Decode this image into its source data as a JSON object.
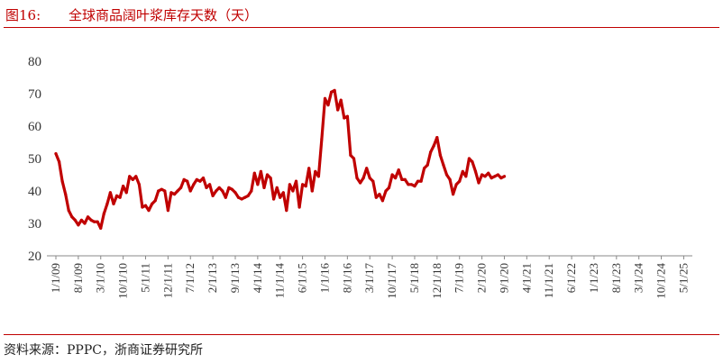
{
  "header": {
    "figure_label": "图16:",
    "title": "全球商品阔叶浆库存天数（天）"
  },
  "footer": {
    "source": "资料来源：PPPC，浙商证券研究所"
  },
  "colors": {
    "accent": "#c00000",
    "line": "#c00000"
  },
  "chart_data": {
    "type": "line",
    "title": "全球商品阔叶浆库存天数（天）",
    "xlabel": "",
    "ylabel": "",
    "ylim": [
      20,
      80
    ],
    "yticks": [
      20,
      30,
      40,
      50,
      60,
      70,
      80
    ],
    "grid": false,
    "legend": "none",
    "x_tick_labels": [
      "1/1/09",
      "8/1/09",
      "3/1/10",
      "10/1/10",
      "5/1/11",
      "12/1/11",
      "7/1/12",
      "2/1/13",
      "9/1/13",
      "4/1/14",
      "11/1/14",
      "6/1/15",
      "1/1/16",
      "8/1/16",
      "3/1/17",
      "10/1/17",
      "5/1/18",
      "12/1/18",
      "7/1/19",
      "2/1/20",
      "9/1/20",
      "4/1/21",
      "11/1/21",
      "6/1/22",
      "1/1/23",
      "8/1/23",
      "3/1/24",
      "10/1/24",
      "5/1/25"
    ],
    "x_tick_months": [
      0,
      7,
      14,
      21,
      28,
      35,
      42,
      49,
      56,
      63,
      70,
      77,
      84,
      91,
      98,
      105,
      112,
      119,
      126,
      133,
      140,
      147,
      154,
      161,
      168,
      175,
      182,
      189,
      196
    ],
    "x_end_month": 197,
    "series": [
      {
        "points": [
          [
            0,
            51.5
          ],
          [
            1,
            49
          ],
          [
            2,
            43
          ],
          [
            3,
            39
          ],
          [
            4,
            34
          ],
          [
            5,
            32
          ],
          [
            6,
            31
          ],
          [
            7,
            29.5
          ],
          [
            8,
            31
          ],
          [
            9,
            30
          ],
          [
            10,
            32
          ],
          [
            11,
            31
          ],
          [
            12,
            30.5
          ],
          [
            13,
            30.5
          ],
          [
            14,
            28.5
          ],
          [
            15,
            33
          ],
          [
            16,
            36
          ],
          [
            17,
            39.5
          ],
          [
            18,
            36
          ],
          [
            19,
            38.5
          ],
          [
            20,
            38
          ],
          [
            21,
            41.5
          ],
          [
            22,
            39.5
          ],
          [
            23,
            44.5
          ],
          [
            24,
            43.5
          ],
          [
            25,
            44.5
          ],
          [
            26,
            42
          ],
          [
            27,
            35
          ],
          [
            28,
            35.5
          ],
          [
            29,
            34
          ],
          [
            30,
            36
          ],
          [
            31,
            37
          ],
          [
            32,
            40
          ],
          [
            33,
            40.5
          ],
          [
            34,
            40
          ],
          [
            35,
            34
          ],
          [
            36,
            39.5
          ],
          [
            37,
            39
          ],
          [
            38,
            40
          ],
          [
            39,
            41
          ],
          [
            40,
            43.5
          ],
          [
            41,
            43
          ],
          [
            42,
            40
          ],
          [
            43,
            42
          ],
          [
            44,
            43.5
          ],
          [
            45,
            43
          ],
          [
            46,
            44
          ],
          [
            47,
            41
          ],
          [
            48,
            42
          ],
          [
            49,
            38.5
          ],
          [
            50,
            40
          ],
          [
            51,
            41
          ],
          [
            52,
            40
          ],
          [
            53,
            38
          ],
          [
            54,
            41
          ],
          [
            55,
            40.5
          ],
          [
            56,
            39.5
          ],
          [
            57,
            38
          ],
          [
            58,
            37.5
          ],
          [
            59,
            38
          ],
          [
            60,
            38.5
          ],
          [
            61,
            40
          ],
          [
            62,
            45.5
          ],
          [
            63,
            42
          ],
          [
            64,
            46
          ],
          [
            65,
            41
          ],
          [
            66,
            45
          ],
          [
            67,
            44
          ],
          [
            68,
            37.5
          ],
          [
            69,
            41
          ],
          [
            70,
            38
          ],
          [
            71,
            39.5
          ],
          [
            72,
            34
          ],
          [
            73,
            42
          ],
          [
            74,
            40
          ],
          [
            75,
            43
          ],
          [
            76,
            35
          ],
          [
            77,
            42
          ],
          [
            78,
            41.5
          ],
          [
            79,
            47
          ],
          [
            80,
            40
          ],
          [
            81,
            46
          ],
          [
            82,
            44.5
          ],
          [
            83,
            56
          ],
          [
            84,
            68.5
          ],
          [
            85,
            66.5
          ],
          [
            86,
            70.5
          ],
          [
            87,
            71
          ],
          [
            88,
            65
          ],
          [
            89,
            68
          ],
          [
            90,
            62.5
          ],
          [
            91,
            63
          ],
          [
            92,
            51
          ],
          [
            93,
            50
          ],
          [
            94,
            44
          ],
          [
            95,
            42.5
          ],
          [
            96,
            44
          ],
          [
            97,
            47
          ],
          [
            98,
            44
          ],
          [
            99,
            43
          ],
          [
            100,
            38
          ],
          [
            101,
            39
          ],
          [
            102,
            37
          ],
          [
            103,
            40
          ],
          [
            104,
            41
          ],
          [
            105,
            45
          ],
          [
            106,
            44
          ],
          [
            107,
            46.5
          ],
          [
            108,
            43.5
          ],
          [
            109,
            43.5
          ],
          [
            110,
            42
          ],
          [
            111,
            42
          ],
          [
            112,
            41.5
          ],
          [
            113,
            43
          ],
          [
            114,
            43
          ],
          [
            115,
            47
          ],
          [
            116,
            48
          ],
          [
            117,
            52
          ],
          [
            118,
            54
          ],
          [
            119,
            56.5
          ],
          [
            120,
            51
          ],
          [
            121,
            48
          ],
          [
            122,
            45
          ],
          [
            123,
            43.5
          ],
          [
            124,
            39
          ],
          [
            125,
            42
          ],
          [
            126,
            43
          ],
          [
            127,
            46
          ],
          [
            128,
            44.5
          ],
          [
            129,
            50
          ],
          [
            130,
            49
          ],
          [
            131,
            46
          ],
          [
            132,
            42.5
          ],
          [
            133,
            45
          ],
          [
            134,
            44.5
          ],
          [
            135,
            45.5
          ],
          [
            136,
            44
          ],
          [
            137,
            44.5
          ],
          [
            138,
            45
          ],
          [
            139,
            44
          ],
          [
            140,
            44.5
          ]
        ]
      }
    ]
  }
}
